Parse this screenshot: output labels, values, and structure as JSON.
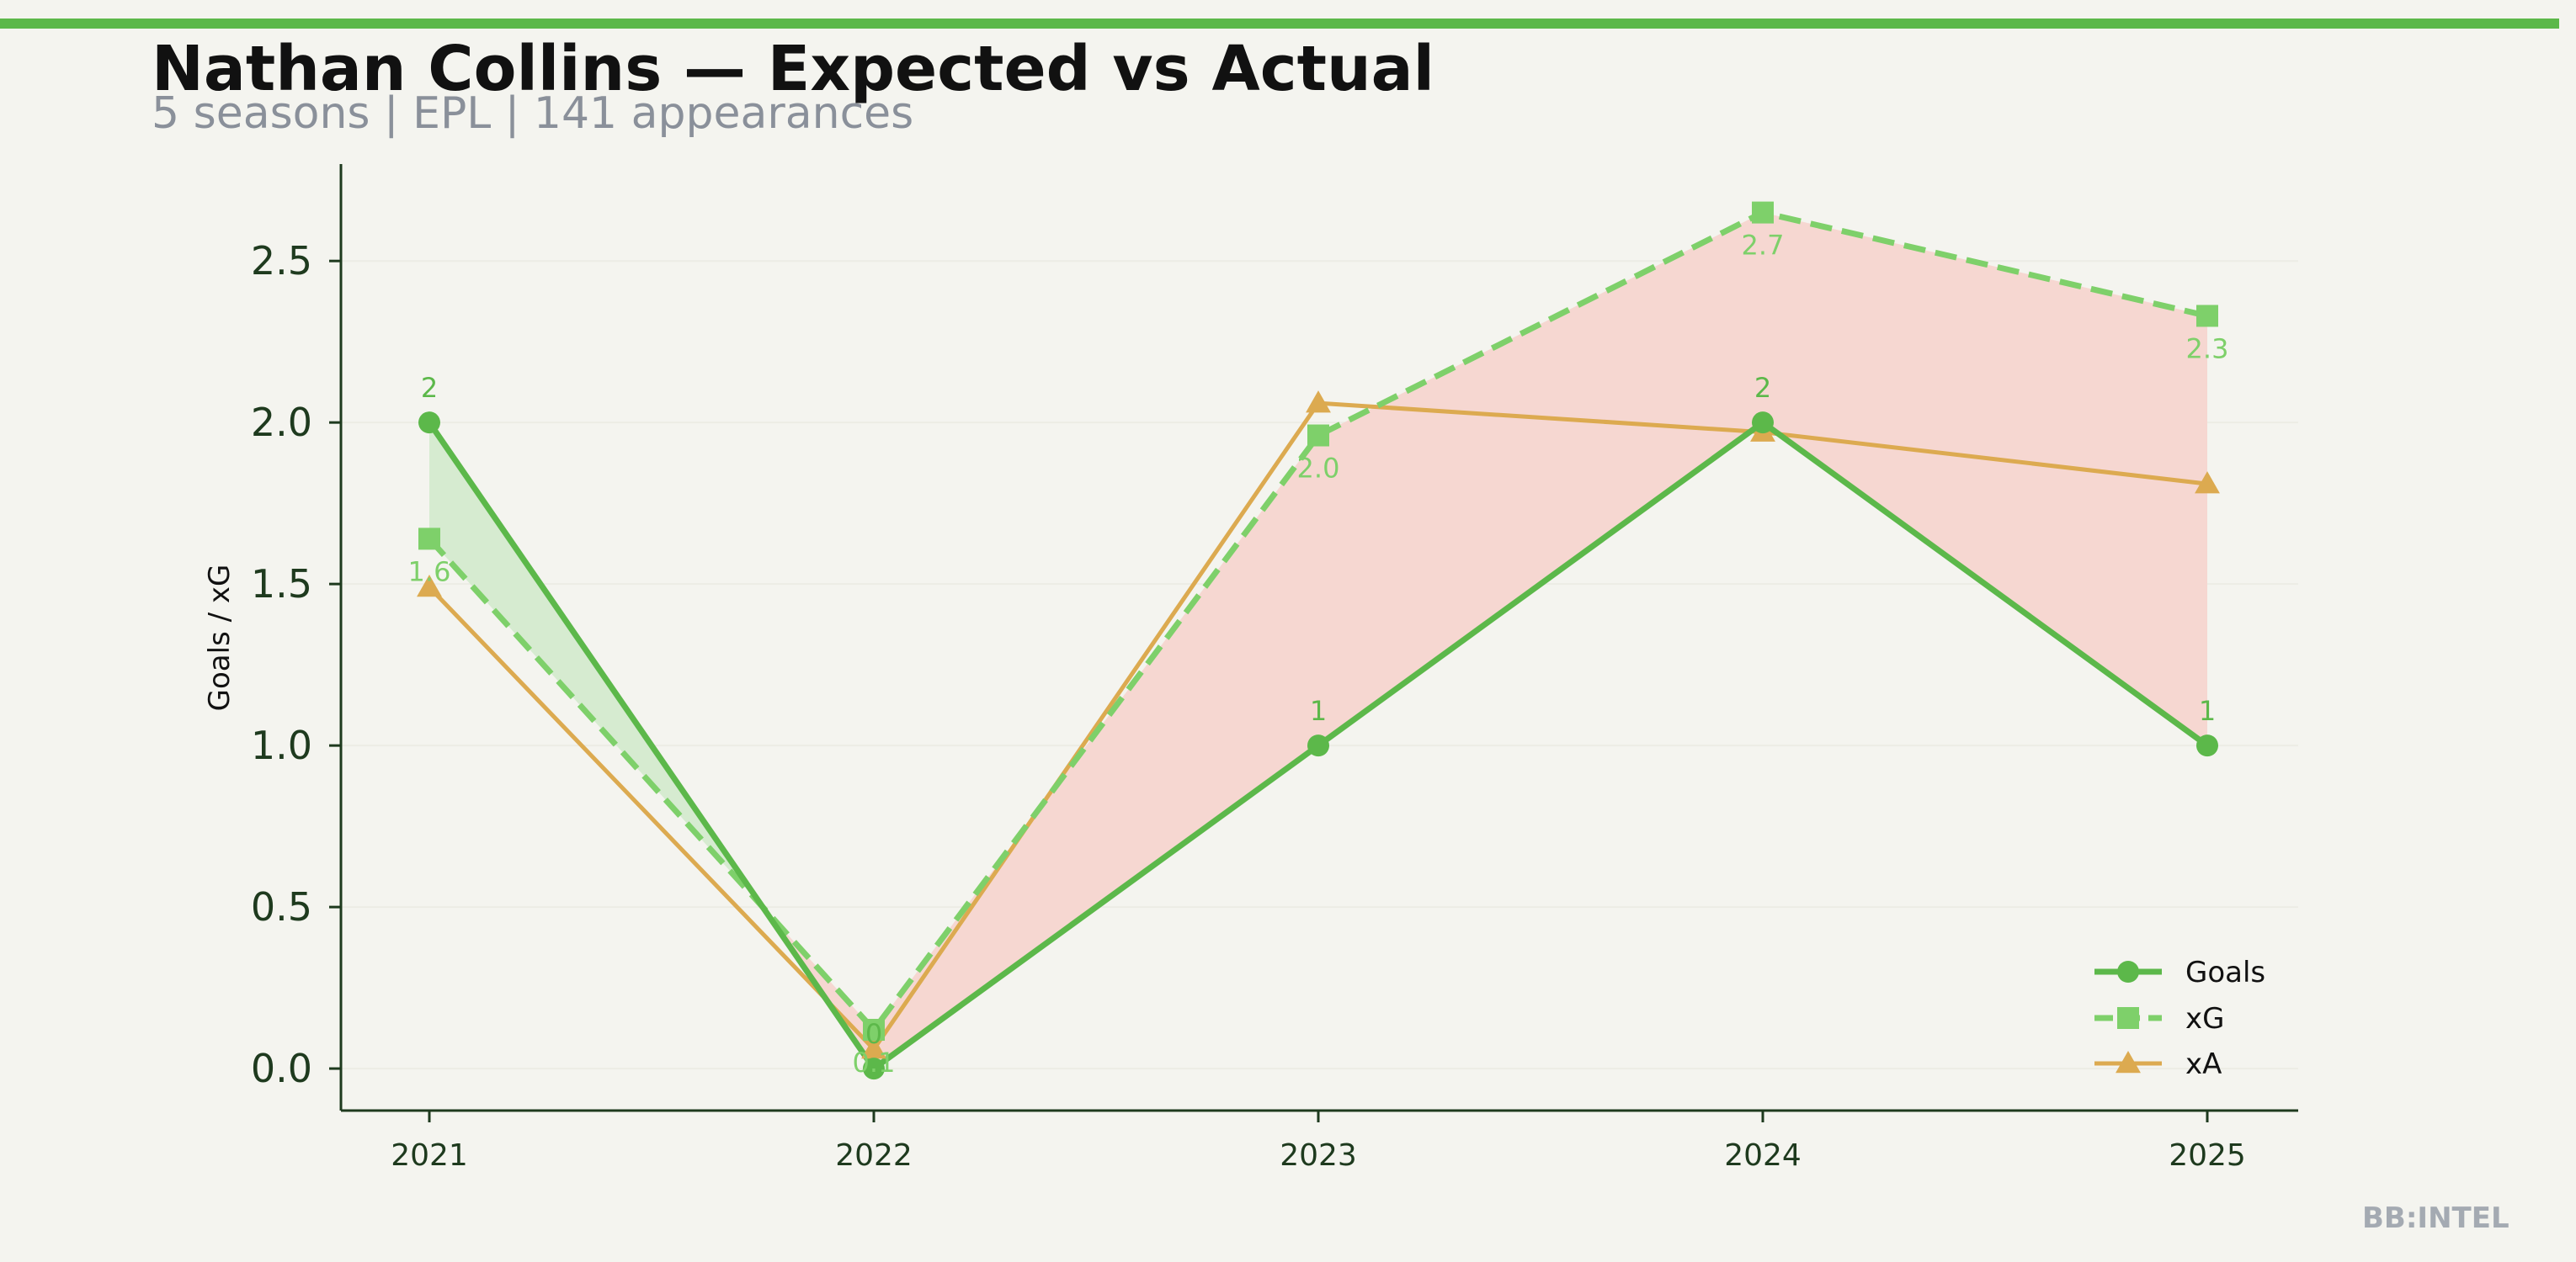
{
  "header": {
    "title": "Nathan Collins — Expected vs Actual",
    "subtitle": "5 seasons | EPL | 141 appearances"
  },
  "watermark": "BB:INTEL",
  "colors": {
    "accent": "#5cb84a",
    "goals": "#5cb84a",
    "xg": "#7ed06a",
    "xa": "#dcaa50",
    "over_fill": "#d6ebd0",
    "under_fill": "#f6d7d1",
    "axis": "#1e3a1e",
    "grid": "#ecece5"
  },
  "chart_data": {
    "type": "line",
    "title": "Nathan Collins — Expected vs Actual",
    "subtitle": "5 seasons | EPL | 141 appearances",
    "xlabel": "",
    "ylabel": "Goals / xG",
    "x": [
      "2021",
      "2022",
      "2023",
      "2024",
      "2025"
    ],
    "ylim": [
      -0.13,
      2.8
    ],
    "yticks": [
      "0.0",
      "0.5",
      "1.0",
      "1.5",
      "2.0",
      "2.5"
    ],
    "grid": true,
    "legend_position": "bottom-right",
    "series": [
      {
        "name": "Goals",
        "values": [
          2,
          0,
          1,
          2,
          1
        ],
        "labels": [
          "2",
          "0",
          "1",
          "2",
          "1"
        ],
        "marker": "circle",
        "style": "solid",
        "color": "#5cb84a"
      },
      {
        "name": "xG",
        "values": [
          1.64,
          0.12,
          1.96,
          2.65,
          2.33
        ],
        "labels": [
          "1.6",
          "0.1",
          "2.0",
          "2.7",
          "2.3"
        ],
        "marker": "square",
        "style": "dashed",
        "color": "#7ed06a"
      },
      {
        "name": "xA",
        "values": [
          1.49,
          0.06,
          2.06,
          1.97,
          1.81
        ],
        "marker": "triangle",
        "style": "solid",
        "color": "#dcaa50"
      }
    ]
  }
}
